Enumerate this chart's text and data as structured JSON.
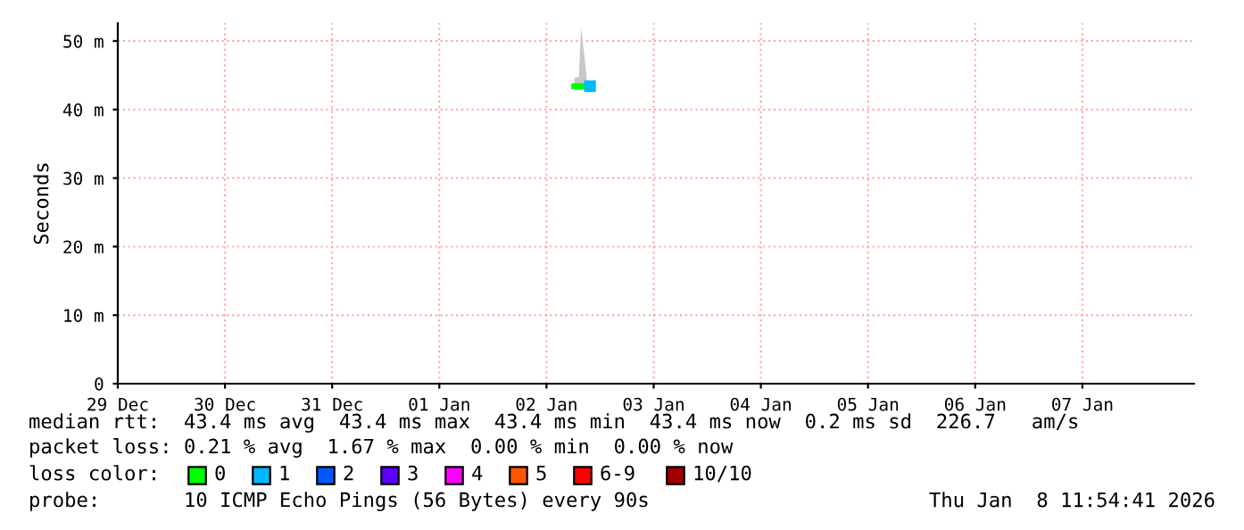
{
  "chart_data": {
    "type": "line",
    "ylabel": "Seconds",
    "legend_title": "loss color:",
    "legend": "bottom left",
    "grid": true,
    "xlim": [
      "2025-12-29",
      "2026-01-08T01:00"
    ],
    "xticks": [
      {
        "value": "2025-12-29",
        "label": "29 Dec"
      },
      {
        "value": "2025-12-30",
        "label": "30 Dec"
      },
      {
        "value": "2025-12-31",
        "label": "31 Dec"
      },
      {
        "value": "2026-01-01",
        "label": "01 Jan"
      },
      {
        "value": "2026-01-02",
        "label": "02 Jan"
      },
      {
        "value": "2026-01-03",
        "label": "03 Jan"
      },
      {
        "value": "2026-01-04",
        "label": "04 Jan"
      },
      {
        "value": "2026-01-05",
        "label": "05 Jan"
      },
      {
        "value": "2026-01-06",
        "label": "06 Jan"
      },
      {
        "value": "2026-01-07",
        "label": "07 Jan"
      }
    ],
    "ylim": [
      0,
      52.6
    ],
    "yticks": [
      0,
      {
        "value": 10,
        "label": "10 m"
      },
      {
        "value": 20,
        "label": "20 m"
      },
      {
        "value": 30,
        "label": "30 m"
      },
      {
        "value": 40,
        "label": "40 m"
      },
      {
        "value": 50,
        "label": "50 m"
      }
    ],
    "series": [
      {
        "name": "0",
        "color": "#00ff00",
        "x": [
          "2026-01-02T06:15",
          "2026-01-02T07:15",
          "2026-01-02T07:45",
          "2026-01-02T09:00"
        ],
        "values": [
          43.4,
          43.4,
          43.4,
          43.4
        ],
        "lower": [
          42.8,
          42.8,
          42.8,
          42.8
        ],
        "upper": [
          44.6,
          44.8,
          52,
          44.8
        ]
      },
      {
        "name": "1",
        "type": "scatter",
        "color": "#00b8ff",
        "x": [
          "2026-01-02T09:45"
        ],
        "values": [
          43.4
        ]
      },
      {
        "name": "2",
        "color": "#0059ff"
      },
      {
        "name": "3",
        "color": "#5e00ff"
      },
      {
        "name": "4",
        "color": "#ff00ff"
      },
      {
        "name": "5",
        "color": "#ff5500"
      },
      {
        "name": "6-9",
        "color": "#ff0000"
      },
      {
        "name": "10/10",
        "color": "#a10000"
      }
    ],
    "annotations": [
      "median rtt:  43.4 ms avg  43.4 ms max  43.4 ms min  43.4 ms now  0.2 ms sd  226.7   am/s",
      "packet loss: 0.21 % avg  1.67 % max  0.00 % min  0.00 % now",
      "probe:       10 ICMP Echo Pings (56 Bytes) every 90s",
      "Thu Jan  8 11:54:41 2026"
    ]
  }
}
